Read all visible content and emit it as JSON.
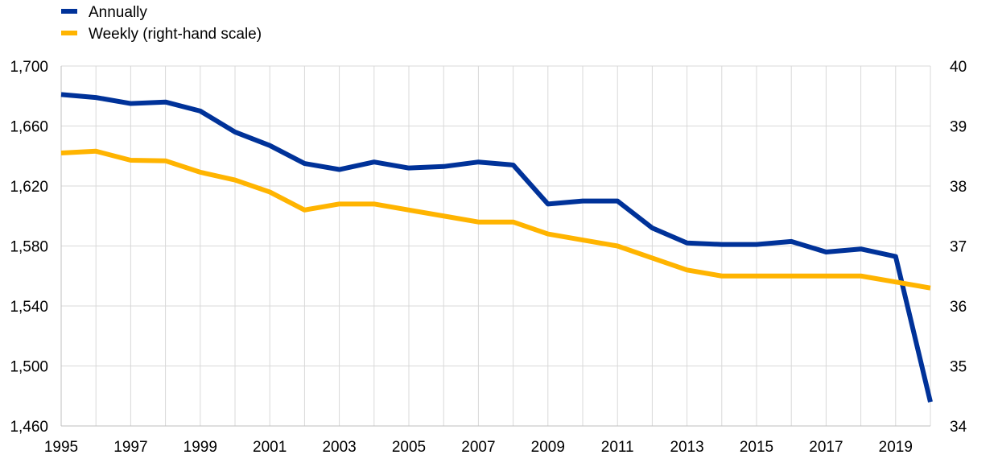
{
  "chart_data": {
    "type": "line",
    "title": "",
    "xlabel": "",
    "ylabel": "",
    "x": [
      1995,
      1996,
      1997,
      1998,
      1999,
      2000,
      2001,
      2002,
      2003,
      2004,
      2005,
      2006,
      2007,
      2008,
      2009,
      2010,
      2011,
      2012,
      2013,
      2014,
      2015,
      2016,
      2017,
      2018,
      2019,
      2020
    ],
    "x_tick_labels": [
      "1995",
      "1997",
      "1999",
      "2001",
      "2003",
      "2005",
      "2007",
      "2009",
      "2011",
      "2013",
      "2015",
      "2017",
      "2019"
    ],
    "y_left": {
      "ylim": [
        1460,
        1700
      ],
      "ticks": [
        "1,460",
        "1,500",
        "1,540",
        "1,580",
        "1,620",
        "1,660",
        "1,700"
      ]
    },
    "y_right": {
      "ylim": [
        34,
        40
      ],
      "ticks": [
        "34",
        "35",
        "36",
        "37",
        "38",
        "39",
        "40"
      ]
    },
    "grid": true,
    "legend": "top-left",
    "series": [
      {
        "name": "Annually",
        "axis": "left",
        "color": "#003299",
        "values": [
          1681,
          1679,
          1675,
          1676,
          1670,
          1656,
          1647,
          1635,
          1631,
          1636,
          1632,
          1633,
          1636,
          1634,
          1608,
          1610,
          1610,
          1592,
          1582,
          1581,
          1581,
          1583,
          1576,
          1578,
          1573,
          1476
        ]
      },
      {
        "name": "Weekly (right-hand scale)",
        "axis": "right",
        "color": "#ffb400",
        "values": [
          38.55,
          38.58,
          38.43,
          38.42,
          38.23,
          38.1,
          37.9,
          37.6,
          37.7,
          37.7,
          37.6,
          37.5,
          37.4,
          37.4,
          37.2,
          37.1,
          37.0,
          36.8,
          36.6,
          36.5,
          36.5,
          36.5,
          36.5,
          36.5,
          36.4,
          36.3
        ]
      }
    ]
  }
}
